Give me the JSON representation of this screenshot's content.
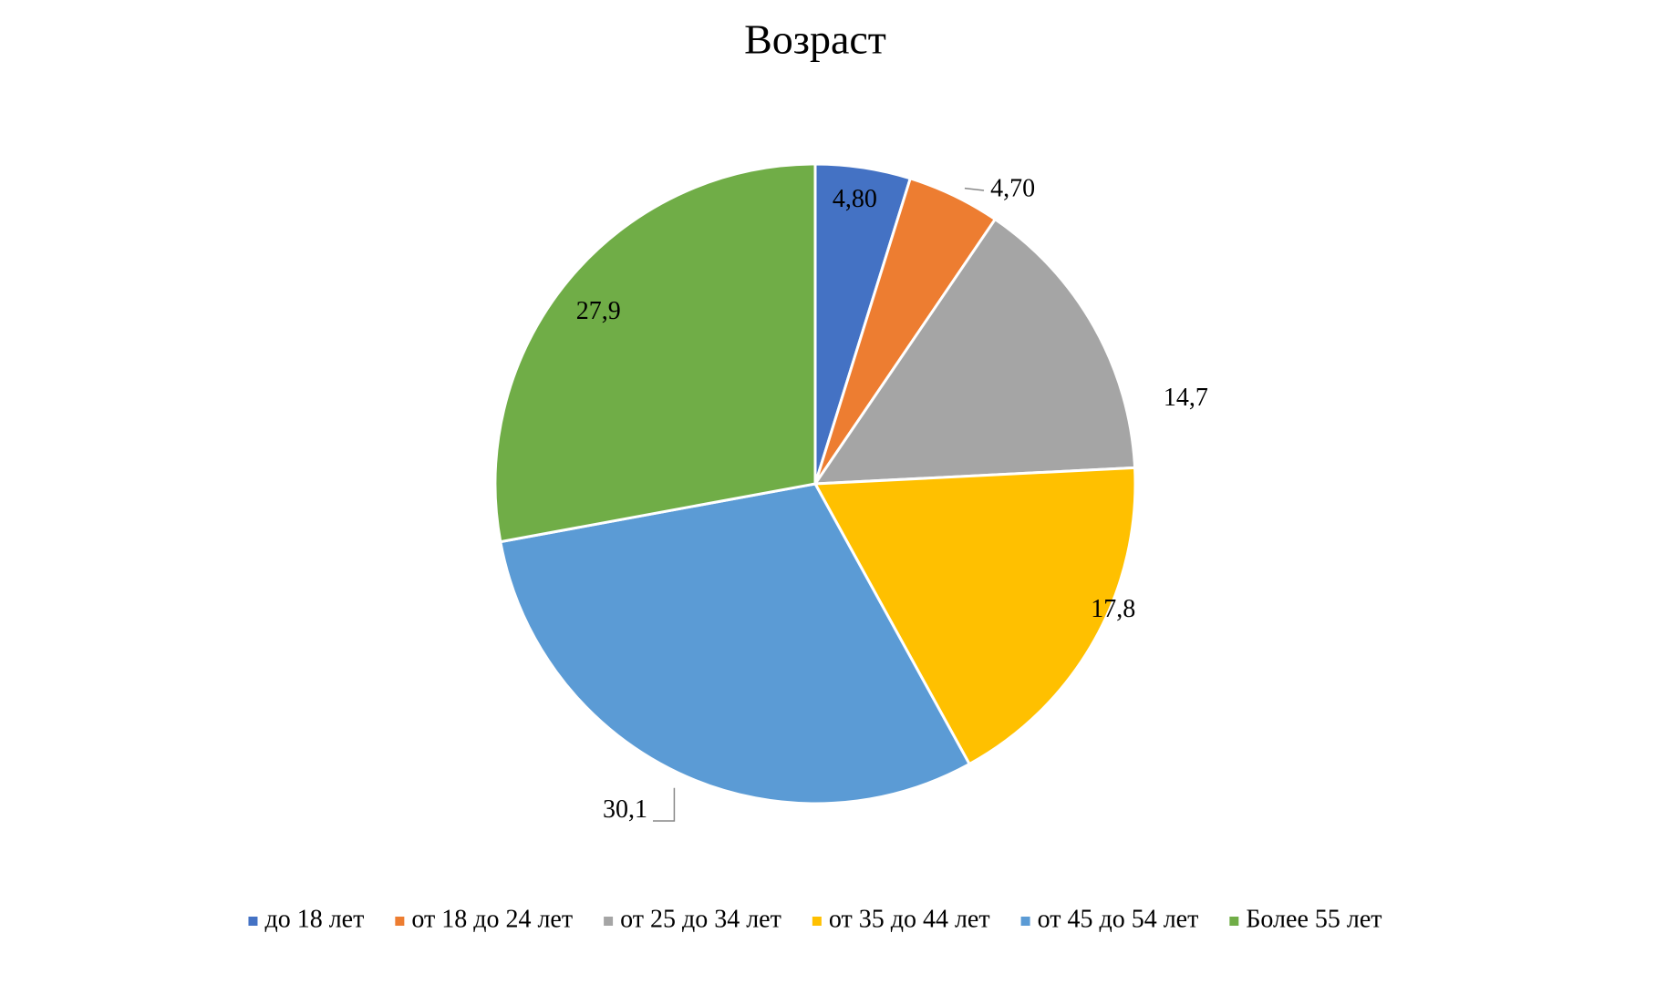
{
  "chart_data": {
    "type": "pie",
    "title": "Возраст",
    "categories": [
      "до 18 лет",
      "от 18 до 24 лет",
      "от 25 до 34 лет",
      "от 35 до 44 лет",
      "от 45 до 54 лет",
      "Более 55 лет"
    ],
    "values": [
      4.8,
      4.7,
      14.7,
      17.8,
      30.1,
      27.9
    ],
    "value_labels": [
      "4,80",
      "4,70",
      "14,7",
      "17,8",
      "30,1",
      "27,9"
    ],
    "colors": [
      "#4472c4",
      "#ed7d31",
      "#a5a5a5",
      "#ffc000",
      "#5b9bd5",
      "#70ad47"
    ],
    "legend": "bottom"
  }
}
